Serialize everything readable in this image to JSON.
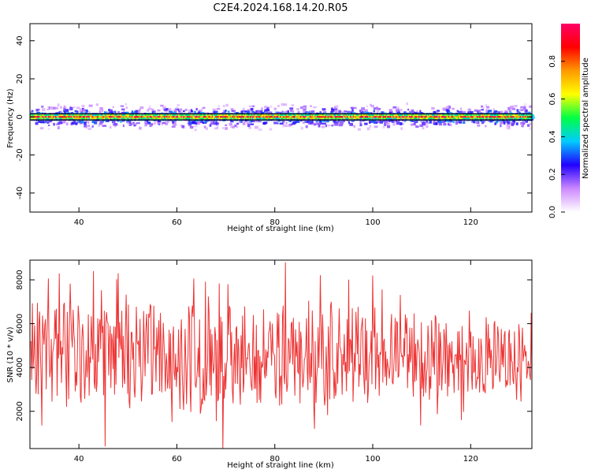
{
  "figure": {
    "title": "C2E4.2024.168.14.20.R05"
  },
  "chart_data": [
    {
      "type": "heatmap",
      "xlabel": "Height of straight line (km)",
      "ylabel": "Frequency (Hz)",
      "xlim": [
        30,
        132.5
      ],
      "ylim": [
        -50,
        49
      ],
      "xticks": [
        40,
        60,
        80,
        100,
        120
      ],
      "yticks": [
        -40,
        -20,
        0,
        20,
        40
      ],
      "band_center_hz": 0,
      "band_halfwidth_hz": 1,
      "scatter_extent_hz": 7,
      "colorbar": {
        "label": "Normalized spectral amplitude",
        "range": [
          0,
          1
        ],
        "ticks": [
          0.0,
          0.2,
          0.4,
          0.6,
          0.8
        ],
        "tick_labels": [
          "0.0",
          "0.2",
          "0.4",
          "0.6",
          "0.8"
        ],
        "colormap": [
          "#ffffff",
          "#cc88ff",
          "#2200ff",
          "#00ccff",
          "#00ff44",
          "#ffff00",
          "#ff9900",
          "#ff0000",
          "#ff0066"
        ]
      }
    },
    {
      "type": "line",
      "xlabel": "Height of straight line (km)",
      "ylabel": "SNR (10 * v/v)",
      "xlim": [
        30,
        132.5
      ],
      "ylim": [
        300,
        8900
      ],
      "xticks": [
        40,
        60,
        80,
        100,
        120
      ],
      "yticks": [
        2000,
        4000,
        6000,
        8000
      ],
      "line_color": "#ee3333",
      "series_samples": 690,
      "series_seed": 20240168,
      "key_points": [
        {
          "x": 30.2,
          "y": 5200
        },
        {
          "x": 36.0,
          "y": 8300
        },
        {
          "x": 43.0,
          "y": 8400
        },
        {
          "x": 45.3,
          "y": 400
        },
        {
          "x": 48.0,
          "y": 8300
        },
        {
          "x": 69.4,
          "y": 200
        },
        {
          "x": 82.2,
          "y": 8800
        },
        {
          "x": 131.5,
          "y": 3500
        },
        {
          "x": 132.4,
          "y": 6500
        }
      ]
    }
  ]
}
